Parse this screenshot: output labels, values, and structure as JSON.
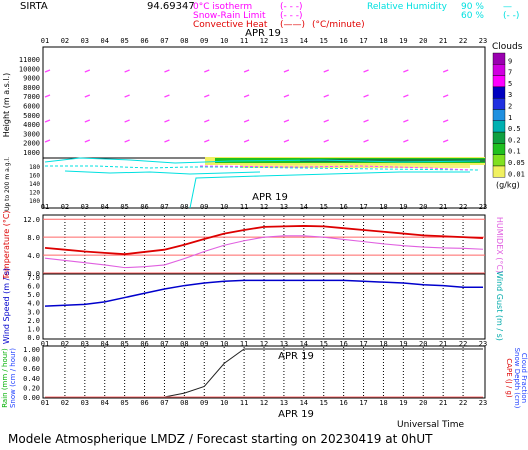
{
  "header": {
    "station": "SIRTA",
    "station_code": "94.69347",
    "date_top": "APR 19",
    "legend_left": [
      {
        "label": "0°C isotherm",
        "sym": "(- - -)",
        "color": "#ff00ff"
      },
      {
        "label": "Snow-Rain Limit",
        "sym": "(- - -)",
        "color": "#ff00ff"
      },
      {
        "label": "Convective Heat",
        "sym": "(——)",
        "color": "#e00000",
        "unit": "(°C/minute)"
      }
    ],
    "legend_right": {
      "title": "Relative Humidity",
      "color": "#00e0e0",
      "levels": [
        {
          "label": "90 %",
          "sym": "—"
        },
        {
          "label": "60 %",
          "sym": "(- -)"
        }
      ]
    }
  },
  "clouds_legend": {
    "title": "Clouds",
    "unit": "(g/kg)",
    "levels": [
      {
        "label": "9",
        "color": "#9a00b0"
      },
      {
        "label": "7",
        "color": "#d000e0"
      },
      {
        "label": "5",
        "color": "#ff00ff"
      },
      {
        "label": "3",
        "color": "#0000c0"
      },
      {
        "label": "2",
        "color": "#2030e0"
      },
      {
        "label": "1",
        "color": "#2090e0"
      },
      {
        "label": "0.5",
        "color": "#00b0b0"
      },
      {
        "label": "0.2",
        "color": "#10a040"
      },
      {
        "label": "0.1",
        "color": "#20c020"
      },
      {
        "label": "0.05",
        "color": "#80e020"
      },
      {
        "label": "0.01",
        "color": "#f0f060"
      }
    ]
  },
  "hours": [
    "01",
    "02",
    "03",
    "04",
    "05",
    "06",
    "07",
    "08",
    "09",
    "10",
    "11",
    "12",
    "13",
    "14",
    "15",
    "16",
    "17",
    "18",
    "19",
    "20",
    "21",
    "22",
    "23"
  ],
  "chart_data": [
    {
      "type": "heatmap",
      "title": "",
      "ylabel": "Height (m a.s.l.)",
      "ylabel2": "Up to 200 m a.g.l.",
      "yticks_upper": [
        "1000",
        "2000",
        "3000",
        "4000",
        "5000",
        "6000",
        "7000",
        "8000",
        "9000",
        "10000",
        "11000"
      ],
      "yticks_lower": [
        "100",
        "120",
        "140",
        "160",
        "180"
      ],
      "date_label": "APR 19"
    },
    {
      "type": "line",
      "ylabel_left": "Temperature (°C)",
      "ylabel_right": "HUMIDEX (°C)",
      "yticks": [
        "0.0",
        "4.0",
        "8.0",
        "12.0"
      ],
      "ylim": [
        0,
        12.5
      ],
      "series": [
        {
          "name": "Temperature",
          "color": "#dd0000",
          "values": [
            5.6,
            5.2,
            4.8,
            4.5,
            4.2,
            4.7,
            5.2,
            6.3,
            7.6,
            8.8,
            9.6,
            10.3,
            10.4,
            10.5,
            10.4,
            10.0,
            9.6,
            9.2,
            8.8,
            8.4,
            8.2,
            8.0,
            7.8
          ]
        },
        {
          "name": "HUMIDEX",
          "color": "#e060e0",
          "values": [
            3.3,
            2.8,
            2.3,
            1.8,
            1.2,
            1.4,
            1.8,
            3.2,
            4.8,
            6.2,
            7.2,
            8.0,
            8.3,
            8.3,
            8.0,
            7.5,
            7.0,
            6.5,
            6.1,
            5.8,
            5.6,
            5.5,
            5.3
          ]
        }
      ]
    },
    {
      "type": "line",
      "ylabel_left": "Wind Speed (m / s)",
      "ylabel_right": "Wind Gust (m / s)",
      "yticks": [
        "0.0",
        "1.0",
        "2.0",
        "3.0",
        "4.0",
        "5.0",
        "6.0",
        "7.0"
      ],
      "ylim": [
        0,
        7
      ],
      "series": [
        {
          "name": "Wind Speed",
          "color": "#0000cc",
          "values": [
            3.6,
            3.7,
            3.8,
            4.1,
            4.6,
            5.1,
            5.6,
            6.0,
            6.3,
            6.5,
            6.6,
            6.6,
            6.6,
            6.6,
            6.6,
            6.6,
            6.5,
            6.4,
            6.3,
            6.1,
            6.0,
            5.8,
            5.8
          ]
        }
      ]
    },
    {
      "type": "line",
      "ylabel_left_1": "Rain (mm / hour)",
      "ylabel_left_2": "Snow (cm / hour)",
      "ylabel_right_1": "CAPE (J / g)",
      "ylabel_right_2": "Snow Depth (cm)",
      "ylabel_right_3": "Cloud Fraction",
      "yticks": [
        "0.00",
        "0.20",
        "0.40",
        "0.60",
        "0.80",
        "1.00"
      ],
      "ylim": [
        0,
        1.0
      ],
      "date_label": "APR 19",
      "series": [
        {
          "name": "Rain",
          "color": "#222222",
          "values": [
            0,
            0,
            0,
            0,
            0,
            0,
            0,
            0.08,
            0.22,
            0.7,
            1.0,
            1.0,
            1.0,
            1.0,
            1.0,
            1.0,
            1.0,
            1.0,
            1.0,
            1.0,
            1.0,
            1.0,
            1.0
          ]
        },
        {
          "name": "Snow",
          "color": "#ff7070",
          "values": [
            0,
            0,
            0,
            0,
            0,
            0,
            0,
            0,
            0,
            0,
            0,
            0,
            0,
            0,
            0,
            0,
            0,
            0,
            0,
            0,
            0,
            0,
            0
          ]
        }
      ]
    }
  ],
  "xlabel": "Universal Time",
  "footer": "Modele Atmospherique LMDZ / Forecast starting on 20230419 at 0hUT"
}
